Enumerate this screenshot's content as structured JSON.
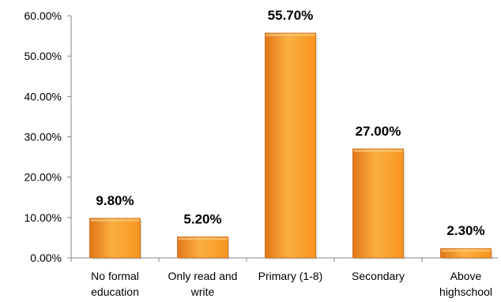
{
  "chart_data": {
    "type": "bar",
    "title": "",
    "xlabel": "",
    "ylabel": "",
    "ylim": [
      0,
      60
    ],
    "yticks": [
      "0.00%",
      "10.00%",
      "20.00%",
      "30.00%",
      "40.00%",
      "50.00%",
      "60.00%"
    ],
    "ytick_values": [
      0,
      10,
      20,
      30,
      40,
      50,
      60
    ],
    "grid": false,
    "legend": "none",
    "categories": [
      [
        "No formal",
        "education"
      ],
      [
        "Only read and",
        "write"
      ],
      [
        "Primary (1-8)"
      ],
      [
        "Secondary"
      ],
      [
        "Above",
        "highschool"
      ]
    ],
    "values": [
      9.8,
      5.2,
      55.7,
      27.0,
      2.3
    ],
    "data_labels": [
      "9.80%",
      "5.20%",
      "55.70%",
      "27.00%",
      "2.30%"
    ],
    "colors": {
      "bar_light": "#FBB040",
      "bar_mid": "#F7941D",
      "bar_dark": "#E0761A",
      "bar_edge": "#C8640E",
      "axis": "#868686"
    }
  }
}
